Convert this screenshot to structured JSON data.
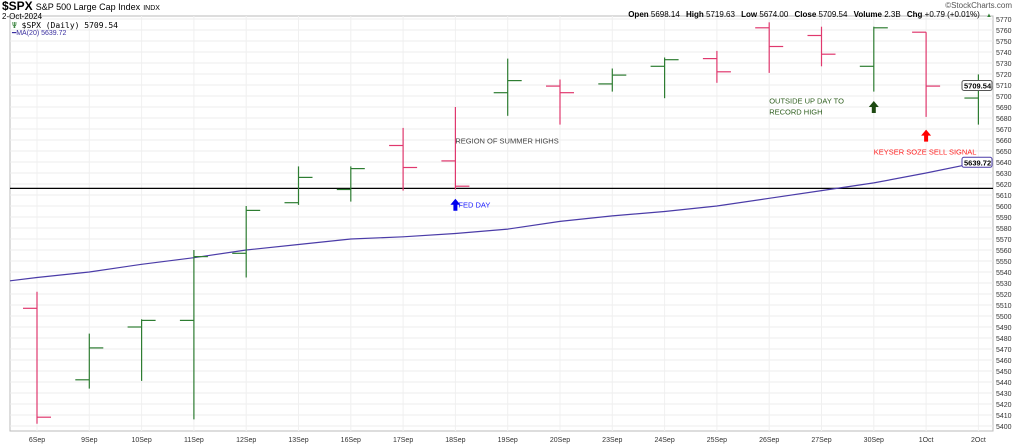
{
  "header": {
    "symbol": "$SPX",
    "name": "S&P 500 Large Cap Index",
    "exchange": "INDX",
    "date": "2-Oct-2024",
    "legend_price": "$SPX (Daily) 5709.54",
    "legend_ma": "MA(20) 5639.72",
    "watermark": "©StockCharts.com",
    "quote": [
      {
        "label": "Open",
        "value": "5698.14"
      },
      {
        "label": "High",
        "value": "5719.63"
      },
      {
        "label": "Low",
        "value": "5674.00"
      },
      {
        "label": "Close",
        "value": "5709.54"
      },
      {
        "label": "Volume",
        "value": "2.3B"
      },
      {
        "label": "Chg",
        "value": "+0.79 (+0.01%)"
      }
    ]
  },
  "chart_data": {
    "type": "ohlc",
    "ylim": [
      5395,
      5772
    ],
    "yticks": [
      5400,
      5410,
      5420,
      5430,
      5440,
      5450,
      5460,
      5470,
      5480,
      5490,
      5500,
      5510,
      5520,
      5530,
      5540,
      5550,
      5560,
      5570,
      5580,
      5590,
      5600,
      5610,
      5620,
      5630,
      5640,
      5650,
      5660,
      5670,
      5680,
      5690,
      5700,
      5710,
      5720,
      5730,
      5740,
      5750,
      5760,
      5770
    ],
    "categories": [
      "6Sep",
      "9Sep",
      "10Sep",
      "11Sep",
      "12Sep",
      "13Sep",
      "16Sep",
      "17Sep",
      "18Sep",
      "19Sep",
      "20Sep",
      "23Sep",
      "24Sep",
      "25Sep",
      "26Sep",
      "27Sep",
      "30Sep",
      "1Oct",
      "2Oct"
    ],
    "open": [
      5507,
      5442,
      5490,
      5496,
      5557,
      5603,
      5615,
      5655,
      5641,
      5703,
      5709,
      5711,
      5727,
      5734,
      5762,
      5755,
      5727,
      5758,
      5698.14
    ],
    "high": [
      5522,
      5484,
      5497,
      5560,
      5600,
      5636,
      5636,
      5671,
      5690,
      5734,
      5715,
      5725,
      5735,
      5741,
      5767,
      5763,
      5763,
      5758,
      5719.63
    ],
    "low": [
      5402,
      5434,
      5441,
      5406,
      5535,
      5601,
      5604,
      5614,
      5615,
      5682,
      5674,
      5704,
      5698,
      5712,
      5721,
      5727,
      5704,
      5681,
      5674
    ],
    "close": [
      5408,
      5471,
      5496,
      5554,
      5596,
      5626,
      5634,
      5635,
      5618,
      5714,
      5703,
      5719,
      5733,
      5722,
      5745,
      5738,
      5762,
      5709,
      5709.54
    ],
    "ma20": [
      5535,
      5540,
      5547,
      5553,
      5560,
      5565,
      5570,
      5572,
      5575,
      5579,
      5586,
      5591,
      5595,
      5600,
      5607,
      5614,
      5621,
      5630,
      5639.72
    ],
    "hline": 5616,
    "last_price_label": "5709.54",
    "last_ma_label": "5639.72",
    "colors": {
      "up": "#2e7d32",
      "down": "#e0386e",
      "ma": "#4b3ca8",
      "hline": "#000000"
    },
    "annotations": [
      {
        "text": "REGION OF SUMMER HIGHS",
        "color": "#444444",
        "at": "18Sep",
        "price": 5657
      },
      {
        "text": "FED DAY",
        "color": "#1a1aff",
        "at": "18Sep",
        "price": 5603,
        "arrow": "up",
        "arrow_color": "#0000ee"
      },
      {
        "text": "OUTSIDE UP DAY TO",
        "color": "#2e5e1e",
        "at": "26Sep",
        "price": 5693
      },
      {
        "text": "RECORD HIGH",
        "color": "#2e5e1e",
        "at": "26Sep",
        "price": 5683
      },
      {
        "text": "",
        "at": "30Sep",
        "price": 5690,
        "arrow": "up",
        "arrow_color": "#1e4a12"
      },
      {
        "text": "KEYSER SOZE SELL SIGNAL",
        "color": "#ff2020",
        "at": "30Sep",
        "price": 5647,
        "arrow": "up",
        "arrow_color": "#ff0000",
        "arrow_at": "1Oct",
        "arrow_price": 5664
      }
    ]
  }
}
